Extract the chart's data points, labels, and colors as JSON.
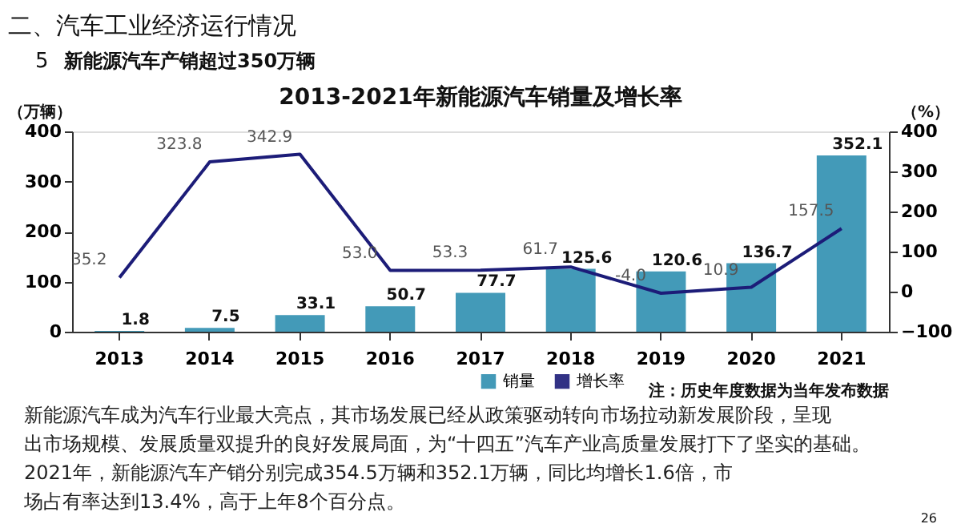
{
  "chart_data": {
    "type": "bar",
    "title": "2013-2021年新能源汽车销量及增长率",
    "ylabel": "（万辆）",
    "y2label": "（%）",
    "categories": [
      "2013",
      "2014",
      "2015",
      "2016",
      "2017",
      "2018",
      "2019",
      "2020",
      "2021"
    ],
    "series": [
      {
        "name": "销量",
        "type": "bar",
        "color": "#2f8fb0",
        "values": [
          1.8,
          7.5,
          33.1,
          50.7,
          77.7,
          125.6,
          120.6,
          136.7,
          352.1
        ]
      },
      {
        "name": "增长率",
        "type": "line",
        "axis": "y2",
        "color": "#1c1c78",
        "values": [
          35.2,
          323.8,
          342.9,
          53.0,
          53.3,
          61.7,
          -4.0,
          10.9,
          157.5
        ],
        "value_labels": [
          "35.2",
          "323.8",
          "342.9",
          "53.0",
          "53.3",
          "61.7",
          "-4.0",
          "10.9",
          "157.5"
        ]
      }
    ],
    "ylim": [
      0,
      400
    ],
    "yticks": [
      0,
      100,
      200,
      300,
      400
    ],
    "y2lim": [
      -100,
      400
    ],
    "y2ticks": [
      -100,
      0,
      100,
      200,
      300,
      400
    ],
    "data_labels": true,
    "legend": "bottom",
    "grid": false,
    "annotations": [
      "二、汽车工业经济运行情况",
      "5",
      "新能源汽车产销超过350万辆",
      "注：历史年度数据为当年发布数据",
      "新能源汽车成为汽车行业最大亮点，其市场发展已经从政策驱动转向市场拉动新发展阶段，呈现出市场规模、发展质量双提升的良好发展局面，为“十四五”汽车产业高质量发展打下了坚实的基础。2021年，新能源汽车产销分别完成354.5万辆和352.1万辆，同比均增长1.6倍，市场占有率达到13.4%，高于上年8个百分点。",
      "26"
    ]
  }
}
